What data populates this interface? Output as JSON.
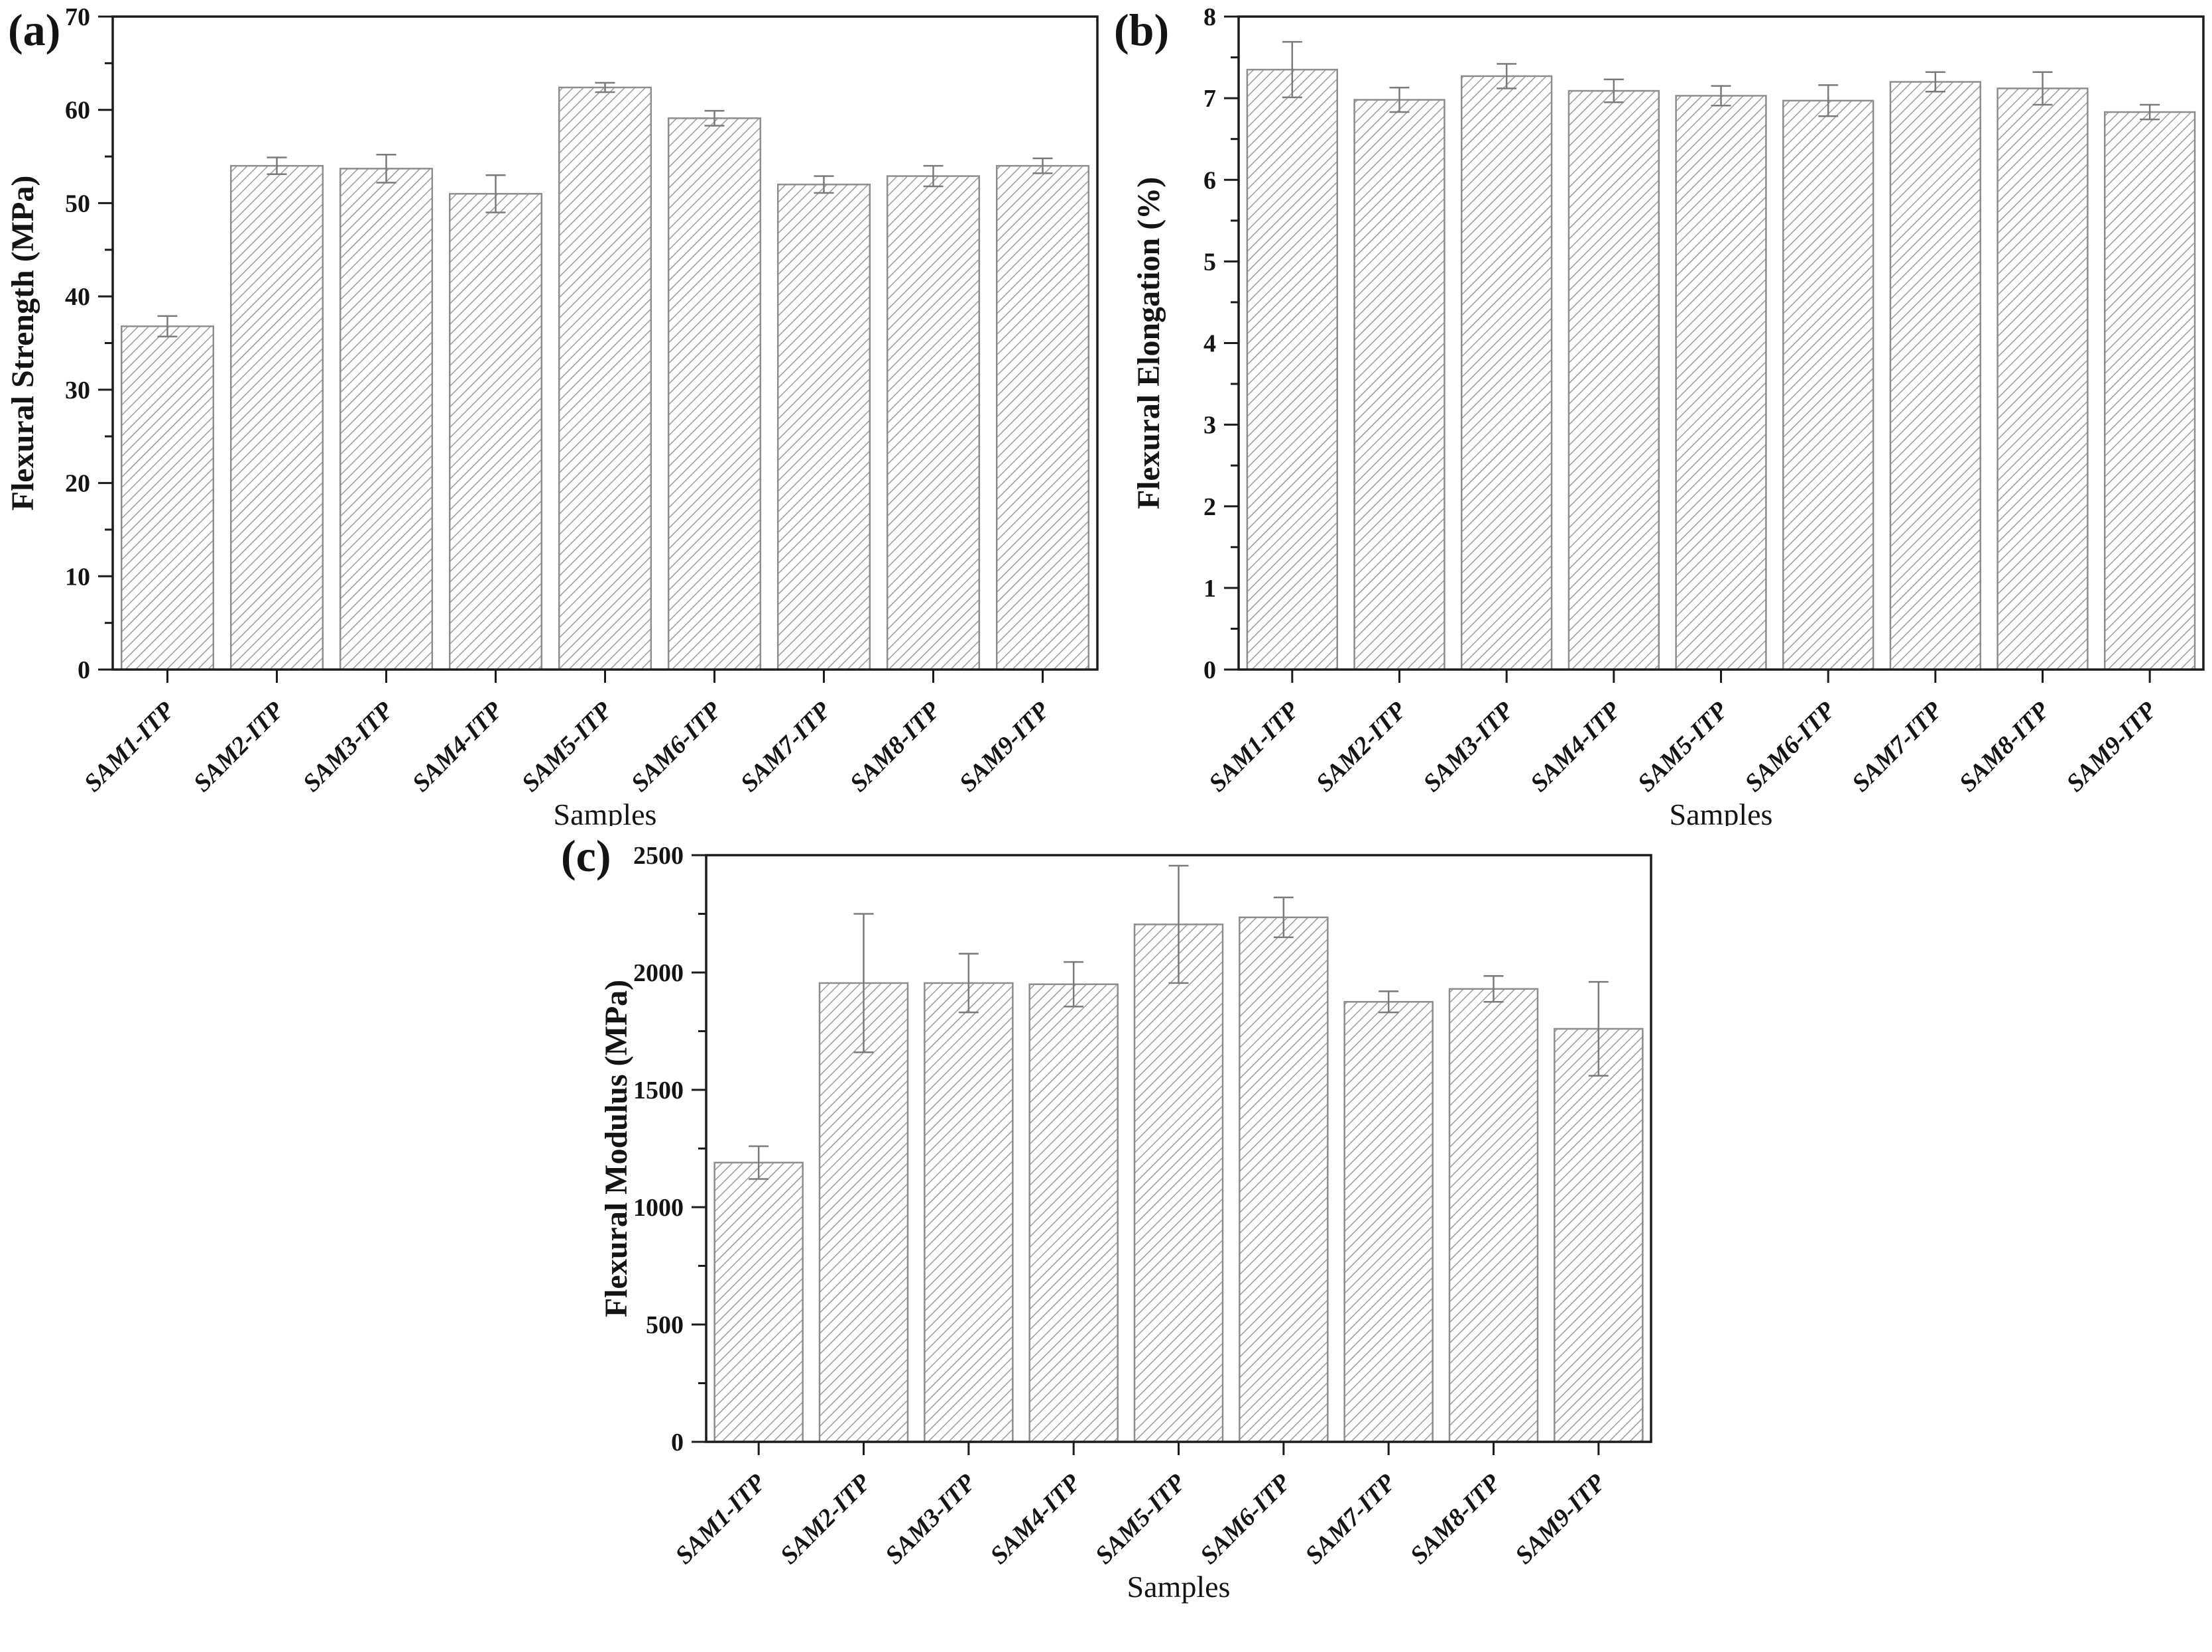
{
  "figure": {
    "background": "#ffffff",
    "bar_fill": "#fefefe",
    "hatch_color": "#9c9c9c",
    "bar_stroke": "#8d8d8d",
    "error_color": "#7a7a7a",
    "axis_color": "#1b1b1b",
    "text_color": "#141414"
  },
  "chart_data": [
    {
      "type": "bar",
      "panel_label": "(a)",
      "xlabel": "Samples",
      "ylabel": "Flexural Strength (MPa)",
      "categories": [
        "SAM1-ITP",
        "SAM2-ITP",
        "SAM3-ITP",
        "SAM4-ITP",
        "SAM5-ITP",
        "SAM6-ITP",
        "SAM7-ITP",
        "SAM8-ITP",
        "SAM9-ITP"
      ],
      "values": [
        36.8,
        54.0,
        53.7,
        51.0,
        62.4,
        59.1,
        52.0,
        52.9,
        54.0
      ],
      "errors": [
        1.1,
        0.9,
        1.5,
        2.0,
        0.5,
        0.8,
        0.9,
        1.1,
        0.8
      ],
      "ylim": [
        0,
        70
      ],
      "ytick_step": 10,
      "yminor_step": 5,
      "grid": false,
      "legend": "none",
      "bar_hatch": "diagonal-45",
      "error_bars": true
    },
    {
      "type": "bar",
      "panel_label": "(b)",
      "xlabel": "Samples",
      "ylabel": "Flexural Elongation (%)",
      "categories": [
        "SAM1-ITP",
        "SAM2-ITP",
        "SAM3-ITP",
        "SAM4-ITP",
        "SAM5-ITP",
        "SAM6-ITP",
        "SAM7-ITP",
        "SAM8-ITP",
        "SAM9-ITP"
      ],
      "values": [
        7.35,
        6.98,
        7.27,
        7.09,
        7.03,
        6.97,
        7.2,
        7.12,
        6.83
      ],
      "errors": [
        0.34,
        0.15,
        0.15,
        0.14,
        0.12,
        0.19,
        0.12,
        0.2,
        0.09
      ],
      "ylim": [
        0,
        8
      ],
      "ytick_step": 1,
      "yminor_step": 0.5,
      "grid": false,
      "legend": "none",
      "bar_hatch": "diagonal-45",
      "error_bars": true
    },
    {
      "type": "bar",
      "panel_label": "(c)",
      "xlabel": "Samples",
      "ylabel": "Flexural Modulus (MPa)",
      "categories": [
        "SAM1-ITP",
        "SAM2-ITP",
        "SAM3-ITP",
        "SAM4-ITP",
        "SAM5-ITP",
        "SAM6-ITP",
        "SAM7-ITP",
        "SAM8-ITP",
        "SAM9-ITP"
      ],
      "values": [
        1190,
        1955,
        1955,
        1950,
        2205,
        2235,
        1875,
        1930,
        1760
      ],
      "errors": [
        70,
        295,
        125,
        95,
        250,
        85,
        45,
        55,
        200
      ],
      "ylim": [
        0,
        2500
      ],
      "ytick_step": 500,
      "yminor_step": 250,
      "grid": false,
      "legend": "none",
      "bar_hatch": "diagonal-45",
      "error_bars": true
    }
  ]
}
